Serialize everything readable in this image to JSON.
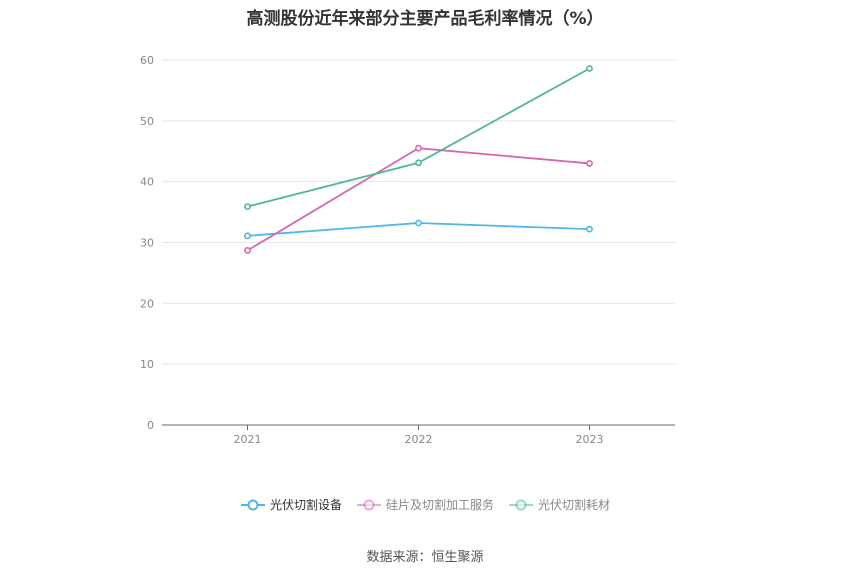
{
  "chart_data": {
    "type": "line",
    "title": "高测股份近年来部分主要产品毛利率情况（%）",
    "categories": [
      "2021",
      "2022",
      "2023"
    ],
    "y_ticks": [
      "0",
      "10",
      "20",
      "30",
      "40",
      "50",
      "60"
    ],
    "ylim": [
      0,
      60
    ],
    "grid": true,
    "legend_position": "bottom",
    "series": [
      {
        "name": "光伏切割设备",
        "color": "#4fb6e8",
        "values": [
          31.1,
          33.2,
          32.2
        ]
      },
      {
        "name": "硅片及切割加工服务",
        "color": "#d966b0",
        "values": [
          28.7,
          45.5,
          43.0
        ]
      },
      {
        "name": "光伏切割耗材",
        "color": "#4fb89a",
        "values": [
          35.9,
          43.1,
          58.6
        ]
      }
    ],
    "source": "数据来源：恒生聚源"
  }
}
